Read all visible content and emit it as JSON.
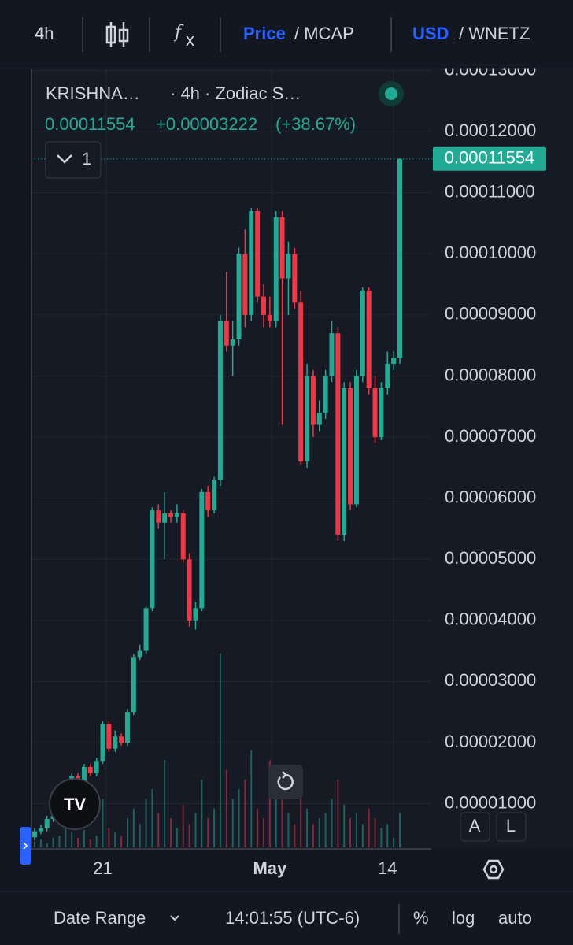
{
  "ui": {
    "toolbar": {
      "interval": "4h",
      "price": "Price",
      "mcap": "/ MCAP",
      "usd": "USD",
      "quote": "/ WNETZ"
    },
    "legend": {
      "symbol": "KRISHNA…",
      "info": "· 4h · Zodiac S…",
      "change": "+0.00003222",
      "change_pct": "(+38.67%)",
      "indicators": 1
    },
    "scale_buttons": [
      "A",
      "L"
    ],
    "footer": {
      "range": "Date Range",
      "time": "14:01:55 (UTC-6)",
      "percent": "%",
      "log": "log",
      "auto": "auto"
    }
  },
  "chart_data": {
    "type": "candlestick",
    "categories": [
      null,
      null,
      null,
      null,
      null,
      null,
      null,
      null,
      null,
      null,
      null,
      "21",
      null,
      null,
      null,
      null,
      null,
      null,
      null,
      null,
      null,
      null,
      null,
      null,
      null,
      null,
      null,
      null,
      null,
      null,
      null,
      null,
      null,
      null,
      null,
      null,
      null,
      null,
      "May",
      null,
      null,
      null,
      null,
      null,
      null,
      null,
      null,
      null,
      null,
      null,
      null,
      null,
      null,
      null,
      null,
      null,
      null,
      "14",
      null,
      null
    ],
    "open": [
      4.5e-06,
      5.5e-06,
      6e-06,
      7.5e-06,
      8e-06,
      1e-05,
      1.2e-05,
      1.45e-05,
      1.3e-05,
      1.6e-05,
      1.5e-05,
      1.7e-05,
      2.3e-05,
      1.9e-05,
      2.1e-05,
      2e-05,
      2.5e-05,
      3.4e-05,
      3.5e-05,
      4.2e-05,
      5.8e-05,
      5.6e-05,
      5.75e-05,
      5.7e-05,
      5.75e-05,
      5e-05,
      4e-05,
      4.2e-05,
      6.1e-05,
      5.8e-05,
      6.3e-05,
      8.9e-05,
      8.5e-05,
      8.6e-05,
      0.0001,
      9e-05,
      0.000107,
      9.3e-05,
      9e-05,
      8.9e-05,
      0.000106,
      9.6e-05,
      0.0001,
      9.2e-05,
      6.6e-05,
      8e-05,
      7.2e-05,
      7.4e-05,
      8e-05,
      8.7e-05,
      5.4e-05,
      7.8e-05,
      5.9e-05,
      8e-05,
      9.4e-05,
      7.8e-05,
      7e-05,
      7.8e-05,
      8.2e-05,
      8.3e-05
    ],
    "high": [
      6e-06,
      6.5e-06,
      8e-06,
      8.5e-06,
      1.05e-05,
      1.3e-05,
      1.5e-05,
      1.5e-05,
      1.65e-05,
      1.65e-05,
      1.75e-05,
      2.35e-05,
      2.35e-05,
      2.2e-05,
      2.15e-05,
      2.55e-05,
      3.45e-05,
      3.6e-05,
      4.25e-05,
      5.85e-05,
      5.9e-05,
      6.1e-05,
      5.8e-05,
      5.9e-05,
      5.8e-05,
      5.1e-05,
      4.3e-05,
      6.15e-05,
      6.2e-05,
      6.35e-05,
      9e-05,
      9.7e-05,
      8.9e-05,
      0.000101,
      0.000104,
      0.0001075,
      0.0001075,
      9.5e-05,
      9.3e-05,
      0.000107,
      0.000107,
      0.000102,
      0.000101,
      9.4e-05,
      8.2e-05,
      8.1e-05,
      7.6e-05,
      8.1e-05,
      8.9e-05,
      8.8e-05,
      7.9e-05,
      7.9e-05,
      8.1e-05,
      9.45e-05,
      9.45e-05,
      8e-05,
      7.9e-05,
      8.4e-05,
      8.4e-05,
      0.0001156
    ],
    "low": [
      4e-06,
      5e-06,
      5.5e-06,
      7e-06,
      7.5e-06,
      9.5e-06,
      1.15e-05,
      1.25e-05,
      1.25e-05,
      1.45e-05,
      1.45e-05,
      1.65e-05,
      1.85e-05,
      1.85e-05,
      1.95e-05,
      1.95e-05,
      2.45e-05,
      3.35e-05,
      3.45e-05,
      4.15e-05,
      5.5e-05,
      5e-05,
      5.6e-05,
      5.6e-05,
      4.95e-05,
      3.9e-05,
      3.85e-05,
      4.15e-05,
      5.7e-05,
      5.75e-05,
      6.2e-05,
      8.4e-05,
      8e-05,
      8.5e-05,
      8.8e-05,
      8.9e-05,
      9.2e-05,
      8.8e-05,
      8.8e-05,
      8.8e-05,
      7.2e-05,
      9e-05,
      9.1e-05,
      6.55e-05,
      6.5e-05,
      7e-05,
      7.1e-05,
      7.3e-05,
      7.9e-05,
      5.3e-05,
      5.3e-05,
      5.8e-05,
      5.85e-05,
      7.9e-05,
      7.7e-05,
      6.9e-05,
      6.95e-05,
      7.7e-05,
      8.1e-05,
      8.2e-05
    ],
    "close": [
      5.5e-06,
      6e-06,
      7.5e-06,
      8e-06,
      1e-05,
      1.2e-05,
      1.45e-05,
      1.3e-05,
      1.6e-05,
      1.5e-05,
      1.7e-05,
      2.3e-05,
      1.9e-05,
      2.1e-05,
      2e-05,
      2.5e-05,
      3.4e-05,
      3.5e-05,
      4.2e-05,
      5.8e-05,
      5.6e-05,
      5.75e-05,
      5.7e-05,
      5.75e-05,
      5e-05,
      4e-05,
      4.2e-05,
      6.1e-05,
      5.8e-05,
      6.3e-05,
      8.9e-05,
      8.5e-05,
      8.6e-05,
      0.0001,
      9e-05,
      0.000107,
      9.3e-05,
      9e-05,
      8.9e-05,
      0.000106,
      9.6e-05,
      0.0001,
      9.2e-05,
      6.6e-05,
      8e-05,
      7.2e-05,
      7.4e-05,
      8e-05,
      8.7e-05,
      5.4e-05,
      7.8e-05,
      5.9e-05,
      8e-05,
      9.4e-05,
      7.8e-05,
      7e-05,
      7.8e-05,
      8.2e-05,
      8.3e-05,
      0.00011554
    ],
    "volume": [
      3,
      4,
      2,
      5,
      6,
      10,
      8,
      5,
      9,
      4,
      6,
      25,
      10,
      8,
      6,
      15,
      20,
      12,
      25,
      30,
      18,
      45,
      15,
      10,
      22,
      12,
      18,
      35,
      15,
      20,
      100,
      40,
      25,
      30,
      35,
      50,
      20,
      15,
      45,
      25,
      30,
      18,
      12,
      28,
      20,
      12,
      15,
      18,
      25,
      35,
      22,
      15,
      18,
      12,
      20,
      15,
      10,
      12,
      5,
      18
    ],
    "up_color": "#22ab94",
    "down_color": "#f23645",
    "ylim": [
      2.6e-06,
      0.0001302
    ],
    "yticks": [
      {
        "value": 1e-05,
        "label": "0.00001000"
      },
      {
        "value": 2e-05,
        "label": "0.00002000"
      },
      {
        "value": 3e-05,
        "label": "0.00003000"
      },
      {
        "value": 4e-05,
        "label": "0.00004000"
      },
      {
        "value": 5e-05,
        "label": "0.00005000"
      },
      {
        "value": 6e-05,
        "label": "0.00006000"
      },
      {
        "value": 7e-05,
        "label": "0.00007000"
      },
      {
        "value": 8e-05,
        "label": "0.00008000"
      },
      {
        "value": 9e-05,
        "label": "0.00009000"
      },
      {
        "value": 0.0001,
        "label": "0.00010000"
      },
      {
        "value": 0.00011,
        "label": "0.00011000"
      },
      {
        "value": 0.00012,
        "label": "0.00012000"
      },
      {
        "value": 0.00013,
        "label": "0.00013000"
      }
    ],
    "grid": true
  }
}
